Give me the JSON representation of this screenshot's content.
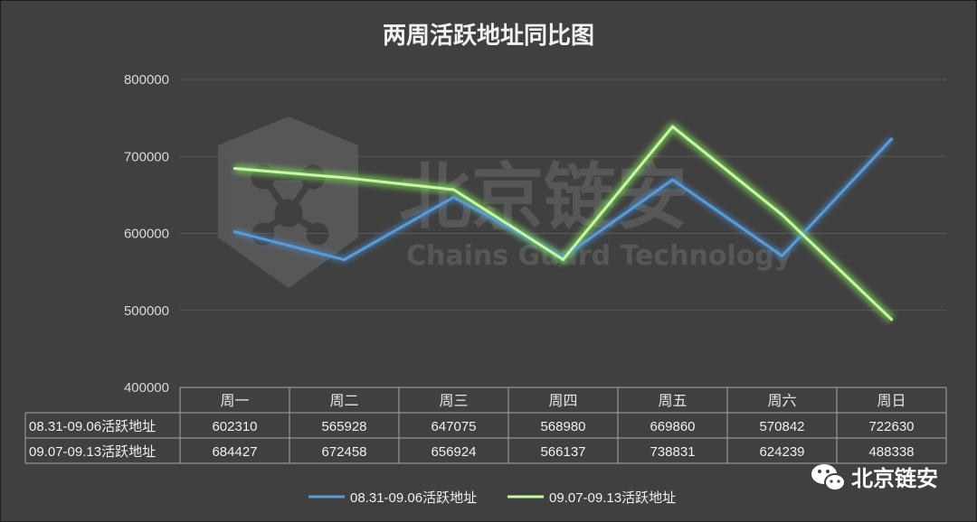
{
  "chart_data": {
    "type": "line",
    "title": "两周活跃地址同比图",
    "categories": [
      "周一",
      "周二",
      "周三",
      "周四",
      "周五",
      "周六",
      "周日"
    ],
    "ylim": [
      400000,
      800000
    ],
    "yticks": [
      "800000",
      "700000",
      "600000",
      "500000",
      "400000"
    ],
    "grid": true,
    "legend": "bottom",
    "series": [
      {
        "name": "08.31-09.06活跃地址",
        "color": "#5b9bd5",
        "values": [
          602310,
          565928,
          647075,
          568980,
          669860,
          570842,
          722630
        ]
      },
      {
        "name": "09.07-09.13活跃地址",
        "color": "#c9f7a8",
        "values": [
          684427,
          672458,
          656924,
          566137,
          738831,
          624239,
          488338
        ]
      }
    ],
    "table": {
      "rows": [
        [
          "602310",
          "565928",
          "647075",
          "568980",
          "669860",
          "570842",
          "722630"
        ],
        [
          "684427",
          "672458",
          "656924",
          "566137",
          "738831",
          "624239",
          "488338"
        ]
      ]
    }
  },
  "watermark": {
    "cn": "北京链安",
    "en": "Chains Guard Technology"
  },
  "logo": {
    "text": "北京链安",
    "icon": "wechat-icon"
  }
}
